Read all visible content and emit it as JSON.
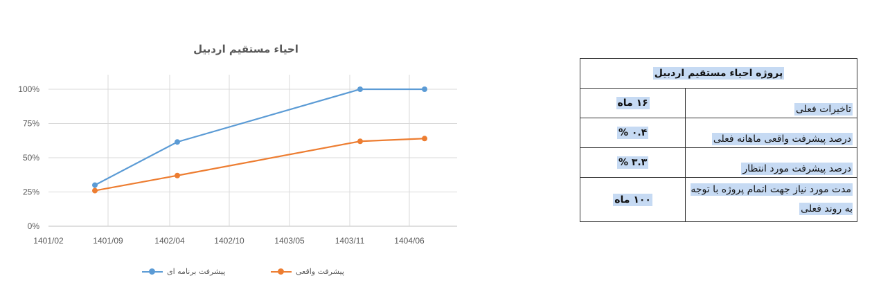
{
  "chart_data": {
    "type": "line",
    "title": "احیاء مستقیم اردبیل",
    "xlabel": "",
    "ylabel": "",
    "x_tick_labels": [
      "1401/02",
      "1401/09",
      "1402/04",
      "1402/10",
      "1403/05",
      "1403/11",
      "1404/06"
    ],
    "y_tick_labels": [
      "0%",
      "25%",
      "50%",
      "75%",
      "100%"
    ],
    "ylim": [
      0,
      1
    ],
    "grid": true,
    "legend_position": "bottom",
    "x": [
      "1401/08",
      "1402/04",
      "1403/12",
      "1404/07"
    ],
    "series": [
      {
        "name": "پیشرفت برنامه ای",
        "color": "#5b9bd5",
        "values": [
          0.3,
          0.615,
          1.0,
          1.0
        ]
      },
      {
        "name": "پیشرفت واقعی",
        "color": "#ed7d31",
        "values": [
          0.26,
          0.37,
          0.62,
          0.64
        ]
      }
    ]
  },
  "table": {
    "title": "پروژه احیاء مستقیم اردبیل",
    "rows": [
      {
        "label": "تاخیرات فعلی",
        "value": "۱۶ ماه"
      },
      {
        "label": "درصد پیشرفت واقعی ماهانه  فعلی",
        "value": "۰.۴ %"
      },
      {
        "label": "درصد پیشرفت مورد انتظار",
        "value": "۳.۳ %"
      },
      {
        "label": "مدت مورد نیاز جهت اتمام پروژه با توجه به روند فعلی",
        "value": "۱۰۰ ماه"
      }
    ]
  }
}
